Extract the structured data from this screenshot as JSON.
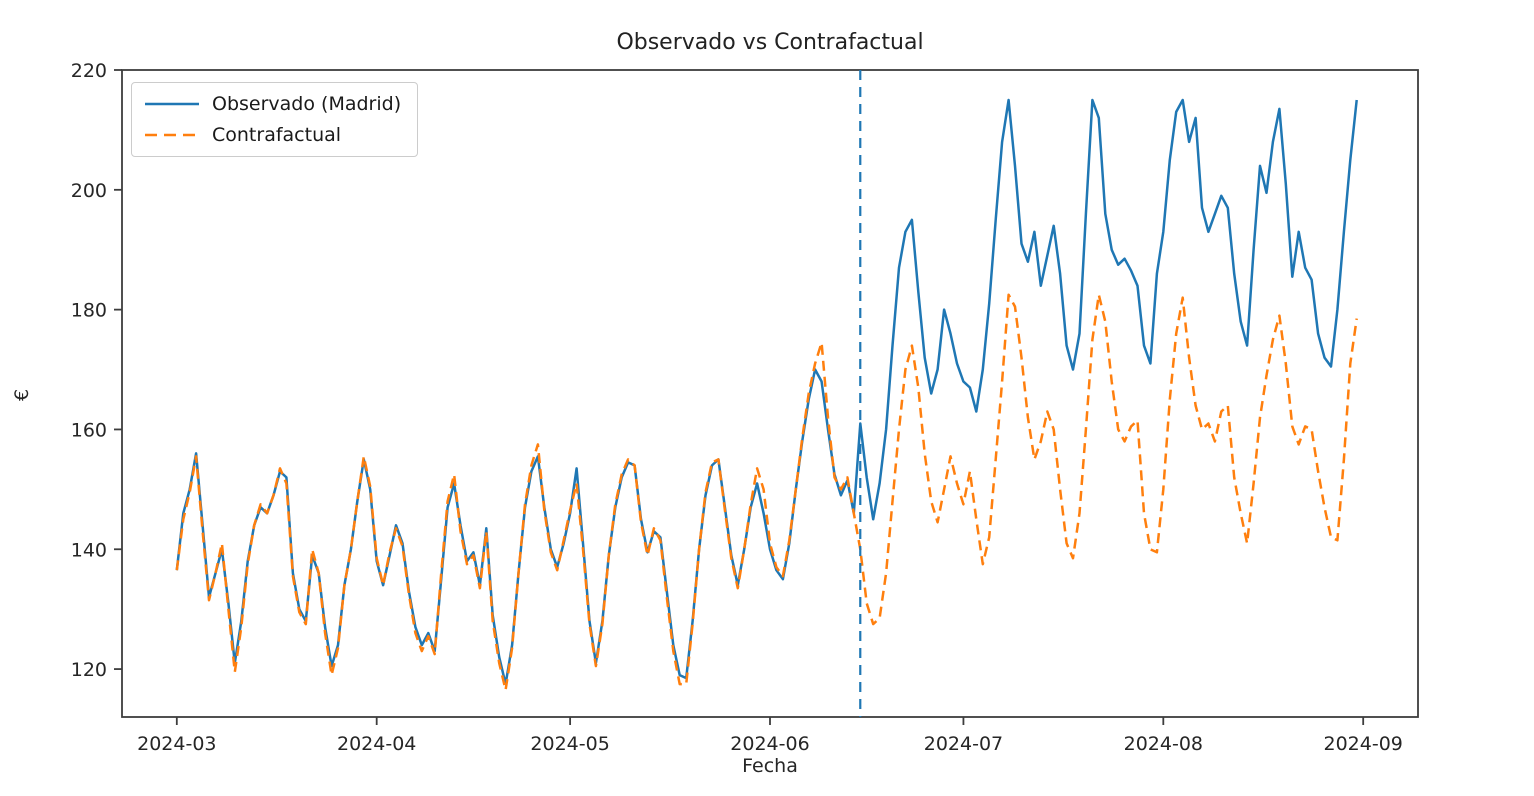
{
  "figure": {
    "title": "Observado vs Contrafactual",
    "xlabel": "Fecha",
    "ylabel": "€"
  },
  "legend": {
    "position": "upper left",
    "items": [
      {
        "label": "Observado (Madrid)",
        "style": "solid",
        "color": "#1f77b4"
      },
      {
        "label": "Contrafactual",
        "style": "dashed",
        "color": "#ff7f0e"
      }
    ]
  },
  "colors": {
    "observado": "#1f77b4",
    "contrafactual": "#ff7f0e",
    "intervention_line": "#1f77b4",
    "axis": "#3d3d3d",
    "tick_text": "#262626"
  },
  "chart_data": {
    "type": "line",
    "title": "Observado vs Contrafactual",
    "xlabel": "Fecha",
    "ylabel": "€",
    "grid": false,
    "legend_position": "upper left",
    "x_start_date": "2024-03-01",
    "x_end_date": "2024-08-31",
    "x_frequency": "daily",
    "x_tick_labels": [
      "2024-03",
      "2024-04",
      "2024-05",
      "2024-06",
      "2024-07",
      "2024-08",
      "2024-09"
    ],
    "x_tick_day_offsets": [
      0,
      31,
      61,
      92,
      122,
      153,
      184
    ],
    "y_ticks": [
      120,
      140,
      160,
      180,
      200,
      220
    ],
    "ylim": [
      112,
      220
    ],
    "xlim_days": [
      -8.5,
      192.5
    ],
    "intervention_vline": {
      "date": "2024-06-15",
      "day_index": 106,
      "style": "dashed",
      "color": "#1f77b4"
    },
    "series": [
      {
        "name": "Observado (Madrid)",
        "color": "#1f77b4",
        "style": "solid",
        "values": [
          136.5,
          146,
          150,
          156,
          144,
          132,
          136,
          140,
          131,
          121,
          128,
          138,
          144,
          147,
          146,
          149,
          153,
          152,
          136,
          130,
          128,
          139,
          136,
          127,
          120.5,
          124,
          134,
          140,
          148,
          155,
          150,
          138,
          134,
          139,
          144,
          141,
          133,
          127,
          124,
          126,
          123,
          135,
          147,
          151,
          144,
          138,
          139.5,
          134,
          143.5,
          129,
          122,
          117.5,
          124,
          136,
          147,
          153,
          155.5,
          147,
          140,
          137,
          141,
          146,
          153.5,
          141,
          128,
          121,
          128,
          139,
          147,
          152,
          154.5,
          154,
          145,
          139.5,
          143,
          142,
          133,
          124,
          119,
          118.5,
          128,
          140,
          149,
          154,
          155,
          147,
          139,
          134,
          140,
          147,
          151,
          146,
          140,
          136.5,
          135,
          141,
          150,
          158,
          165,
          170,
          168,
          160,
          152.5,
          149,
          151.5,
          146,
          161,
          152,
          145,
          151,
          160,
          174,
          187,
          193,
          195,
          183,
          172,
          166,
          170,
          180,
          176,
          171,
          168,
          167,
          163,
          170,
          181,
          195,
          208,
          215,
          204,
          191,
          188,
          193,
          184,
          189,
          194,
          186,
          174,
          170,
          176,
          196,
          215,
          212,
          196,
          190,
          187.5,
          188.5,
          186.5,
          184,
          174,
          171,
          186,
          193,
          205,
          213,
          215,
          208,
          212,
          197,
          193,
          196,
          199,
          197,
          186,
          178,
          174,
          190,
          204,
          199.5,
          208,
          213.5,
          201,
          185.5,
          193,
          187,
          185,
          176,
          172,
          170.5,
          180,
          193,
          205,
          215
        ]
      },
      {
        "name": "Contrafactual",
        "color": "#ff7f0e",
        "style": "dashed",
        "values": [
          136.5,
          145,
          149.5,
          155.5,
          143,
          131.5,
          136,
          141,
          130,
          119.5,
          127,
          137.5,
          144,
          147.5,
          146,
          149,
          153.5,
          151,
          135.5,
          129.5,
          127.5,
          140,
          136,
          126,
          119,
          123.5,
          134,
          140,
          148,
          155.5,
          150.5,
          138.5,
          134,
          139.5,
          143.5,
          140.5,
          132.5,
          126,
          123,
          125.5,
          122.5,
          136,
          148,
          152.5,
          143,
          137.5,
          139,
          133.5,
          143,
          128,
          121,
          116.5,
          123.5,
          136,
          147.5,
          154,
          157.5,
          146.5,
          139.5,
          136.5,
          141.5,
          146.5,
          151,
          140,
          127.5,
          120.5,
          127.5,
          139,
          147.5,
          152.5,
          155,
          154,
          144.5,
          139,
          143.5,
          141.5,
          132,
          123,
          117.5,
          117.5,
          127.5,
          140,
          149.5,
          154.5,
          155,
          146.5,
          138.5,
          133.5,
          140,
          147.5,
          153.5,
          150,
          141,
          137,
          135.5,
          141.5,
          150,
          158.5,
          166,
          171,
          174.5,
          162,
          152,
          150,
          152,
          146,
          140,
          131,
          127.5,
          128.5,
          136,
          148,
          160,
          170,
          174,
          167,
          156,
          148,
          144.5,
          150,
          155.5,
          151,
          147.5,
          153,
          145,
          137.5,
          142,
          155,
          168,
          182.5,
          180.5,
          172,
          162,
          155,
          158,
          163,
          160,
          150,
          141,
          138.5,
          146,
          160,
          175,
          182.5,
          178,
          168,
          160,
          158,
          160.5,
          161.5,
          146,
          140,
          139.5,
          150,
          165,
          176,
          182,
          172,
          164,
          160,
          161,
          158,
          163,
          164,
          152,
          146,
          141,
          151,
          162,
          169,
          175,
          179,
          171,
          160.5,
          157.5,
          160.5,
          160,
          153,
          147,
          142,
          141.5,
          155,
          171,
          178.5
        ]
      }
    ]
  }
}
